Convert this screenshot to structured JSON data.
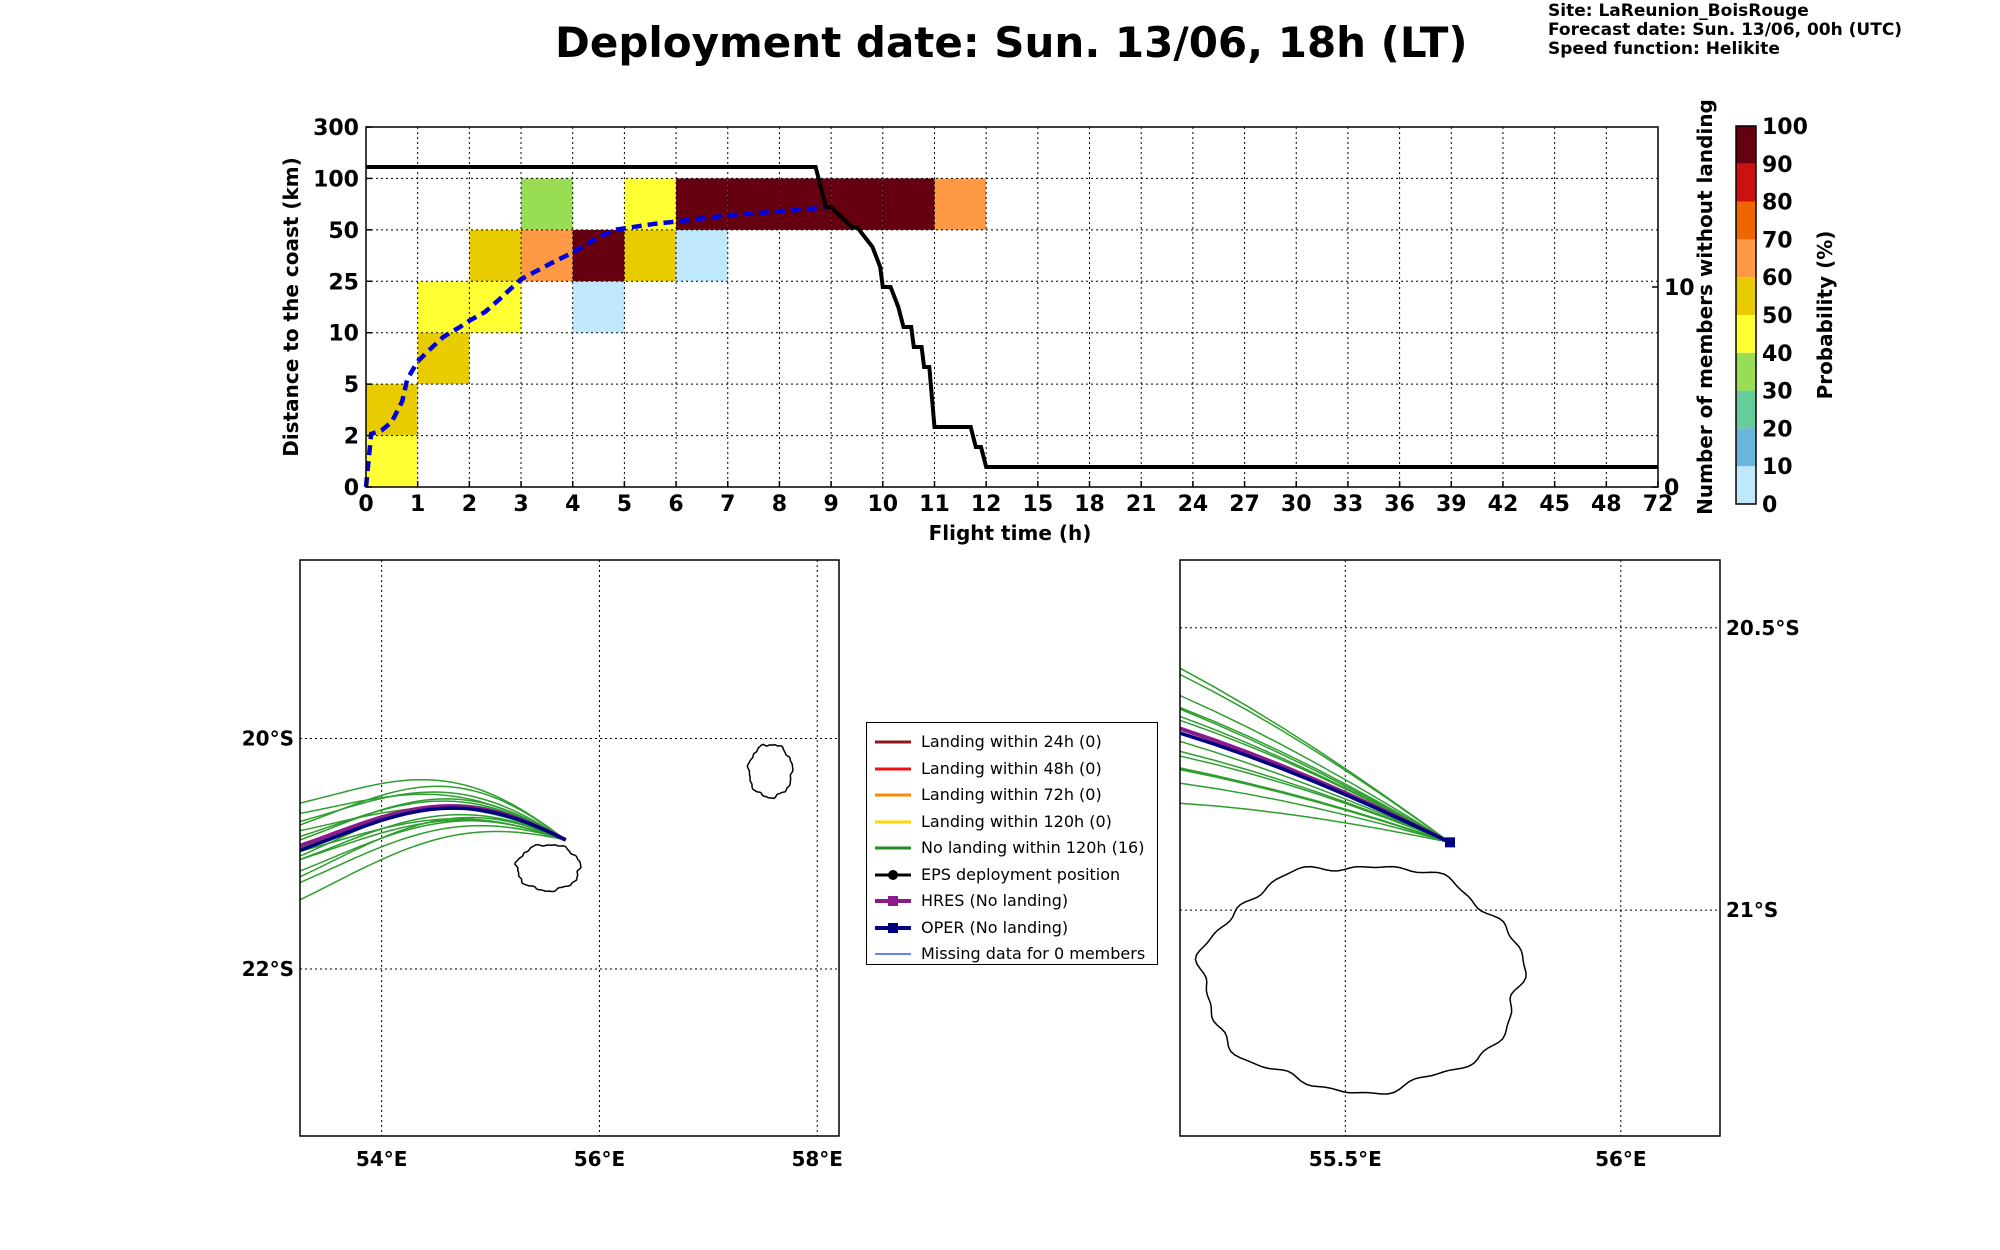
{
  "header": {
    "title": "Deployment date: Sun. 13/06, 18h (LT)",
    "site": "Site: LaReunion_BoisRouge",
    "forecast": "Forecast date: Sun. 13/06, 00h (UTC)",
    "speed": "Speed function: Helikite"
  },
  "chart_data": [
    {
      "type": "heatmap",
      "xlabel": "Flight time (h)",
      "ylabel": "Distance to the coast (km)",
      "ylabel_right": "Number of members without landing",
      "x_ticks": [
        "0",
        "1",
        "2",
        "3",
        "4",
        "5",
        "6",
        "7",
        "8",
        "9",
        "10",
        "11",
        "12",
        "15",
        "18",
        "21",
        "24",
        "27",
        "30",
        "33",
        "36",
        "39",
        "42",
        "45",
        "48",
        "72"
      ],
      "y_ticks": [
        "0",
        "2",
        "5",
        "10",
        "25",
        "50",
        "100",
        "300"
      ],
      "y_right_ticks": [
        {
          "label": "0",
          "value": 0
        },
        {
          "label": "10",
          "value": 10
        }
      ],
      "y_right_range": [
        0,
        18
      ],
      "grid": true,
      "cells": [
        {
          "x_bin": 0,
          "y_bin": 0,
          "prob": 45
        },
        {
          "x_bin": 0,
          "y_bin": 1,
          "prob": 55
        },
        {
          "x_bin": 1,
          "y_bin": 2,
          "prob": 55
        },
        {
          "x_bin": 1,
          "y_bin": 3,
          "prob": 45
        },
        {
          "x_bin": 2,
          "y_bin": 3,
          "prob": 45
        },
        {
          "x_bin": 2,
          "y_bin": 4,
          "prob": 55
        },
        {
          "x_bin": 3,
          "y_bin": 4,
          "prob": 65
        },
        {
          "x_bin": 3,
          "y_bin": 5,
          "prob": 35
        },
        {
          "x_bin": 4,
          "y_bin": 3,
          "prob": 5
        },
        {
          "x_bin": 4,
          "y_bin": 4,
          "prob": 95
        },
        {
          "x_bin": 5,
          "y_bin": 4,
          "prob": 55
        },
        {
          "x_bin": 5,
          "y_bin": 5,
          "prob": 45
        },
        {
          "x_bin": 6,
          "y_bin": 4,
          "prob": 5
        },
        {
          "x_bin": 6,
          "y_bin": 5,
          "prob": 95
        },
        {
          "x_bin": 7,
          "y_bin": 5,
          "prob": 95
        },
        {
          "x_bin": 8,
          "y_bin": 5,
          "prob": 95
        },
        {
          "x_bin": 9,
          "y_bin": 5,
          "prob": 95
        },
        {
          "x_bin": 10,
          "y_bin": 5,
          "prob": 95
        },
        {
          "x_bin": 11,
          "y_bin": 5,
          "prob": 65
        }
      ],
      "median_distance_curve": {
        "style": "dashed",
        "color": "#0000dd",
        "x": [
          0,
          0.1,
          0.3,
          0.5,
          0.7,
          0.8,
          1.0,
          1.2,
          1.5,
          1.8,
          2.0,
          2.3,
          2.6,
          3.0,
          3.3,
          3.6,
          4.0,
          4.4,
          4.8,
          5.2,
          5.6,
          6.0,
          6.5,
          7.0,
          7.5,
          8.0,
          8.5,
          9.0
        ],
        "y": [
          0,
          2.1,
          2.3,
          2.8,
          4.0,
          5.5,
          7.2,
          8.2,
          9.6,
          11.5,
          13.5,
          16,
          20,
          26,
          30,
          34,
          39,
          45,
          50,
          53,
          56,
          58,
          61,
          64,
          66,
          68,
          70,
          72
        ]
      },
      "members_without_landing": {
        "color": "#000000",
        "x": [
          0,
          8.7,
          8.9,
          9.0,
          9.4,
          9.5,
          9.8,
          9.95,
          10.0,
          10.15,
          10.3,
          10.4,
          10.55,
          10.6,
          10.75,
          10.8,
          10.9,
          11.0,
          11.7,
          11.8,
          11.9,
          12.0,
          72
        ],
        "y": [
          16,
          16,
          14,
          14,
          13,
          13,
          12,
          11,
          10,
          10,
          9,
          8,
          8,
          7,
          7,
          6,
          6,
          3,
          3,
          2,
          2,
          1,
          1
        ]
      },
      "colorbar": {
        "label": "Probability (%)",
        "ticks": [
          "0",
          "10",
          "20",
          "30",
          "40",
          "50",
          "60",
          "70",
          "80",
          "90",
          "100"
        ],
        "colors": [
          "#bfe8fa",
          "#6cb6dd",
          "#66cc99",
          "#99dd55",
          "#ffff33",
          "#e8cc00",
          "#ff9944",
          "#ee6600",
          "#cc1111",
          "#660011"
        ]
      }
    },
    {
      "type": "map",
      "x_ticks": [
        "54°E",
        "56°E",
        "58°E"
      ],
      "y_ticks": [
        "20°S",
        "22°S"
      ],
      "lon_range": [
        53.25,
        58.2
      ],
      "lat_range": [
        -23.45,
        -18.45
      ]
    },
    {
      "type": "map",
      "x_ticks": [
        "55.5°E",
        "56°E"
      ],
      "y_ticks": [
        "20.5°S",
        "21°S"
      ],
      "lon_range": [
        55.2,
        56.18
      ],
      "lat_range": [
        -21.4,
        -20.38
      ]
    }
  ],
  "legend": {
    "items": [
      {
        "label": "Landing within 24h (0)",
        "color": "#8b1a1a",
        "kind": "line"
      },
      {
        "label": "Landing within 48h (0)",
        "color": "#ee1111",
        "kind": "line"
      },
      {
        "label": "Landing within 72h (0)",
        "color": "#ff8800",
        "kind": "line"
      },
      {
        "label": "Landing within 120h (0)",
        "color": "#ffd700",
        "kind": "line"
      },
      {
        "label": "No landing within 120h (16)",
        "color": "#228b22",
        "kind": "line"
      },
      {
        "label": "EPS deployment position",
        "color": "#000000",
        "kind": "dot"
      },
      {
        "label": "HRES (No landing)",
        "color": "#8b1a8b",
        "kind": "square"
      },
      {
        "label": "OPER (No landing)",
        "color": "#000080",
        "kind": "square"
      },
      {
        "label": "Missing data for 0 members",
        "color": "#3355ff",
        "kind": "thin"
      }
    ]
  }
}
